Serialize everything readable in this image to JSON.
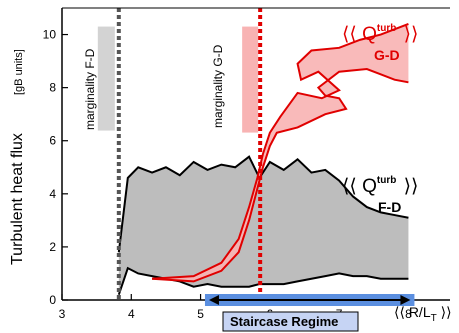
{
  "chart_data": {
    "type": "area",
    "xlabel": "⟨⟨ R/L",
    "xlabel_sub": "T",
    "xlabel_end": " ⟩⟩",
    "ylabel": "Turbulent  heat  flux",
    "yunit": "[gB units]",
    "xlim": [
      3,
      8.6
    ],
    "ylim": [
      0,
      11
    ],
    "xticks": [
      3,
      4,
      5,
      6,
      7,
      8
    ],
    "yticks": [
      0,
      2,
      4,
      6,
      8,
      10
    ],
    "marginality_fd": {
      "x": 3.82,
      "label": "marginality F-D",
      "color": "#555555"
    },
    "marginality_gd": {
      "x": 5.86,
      "label": "marginality G-D",
      "color": "#e00000"
    },
    "series": [
      {
        "name": "⟨⟨ Q turb F-D ⟩⟩",
        "label_main": "⟨⟨ Q",
        "label_sup": "turb",
        "label_sub": "F-D",
        "label_end": " ⟩⟩",
        "color": "#000000",
        "fill": "#bdbdbd",
        "x": [
          3.82,
          3.95,
          4.1,
          4.3,
          4.5,
          4.7,
          4.9,
          5.1,
          5.3,
          5.5,
          5.7,
          5.85,
          6.0,
          6.2,
          6.4,
          6.6,
          6.8,
          7.0,
          7.2,
          7.4,
          7.6,
          7.8,
          8.0
        ],
        "upper": [
          1.8,
          4.6,
          5.0,
          4.8,
          5.0,
          4.7,
          5.2,
          4.9,
          5.1,
          5.0,
          5.4,
          4.6,
          5.2,
          4.9,
          5.3,
          4.8,
          4.9,
          4.5,
          3.9,
          3.5,
          3.3,
          3.2,
          3.1
        ],
        "lower": [
          0.2,
          1.2,
          1.0,
          0.9,
          0.8,
          0.7,
          0.5,
          0.6,
          0.5,
          0.5,
          0.5,
          0.6,
          0.6,
          0.6,
          0.7,
          0.8,
          0.9,
          1.0,
          0.9,
          0.9,
          0.8,
          0.8,
          0.8
        ]
      },
      {
        "name": "⟨⟨ Q turb G-D ⟩⟩",
        "label_main": "⟨⟨ Q",
        "label_sup": "turb",
        "label_sub": "G-D",
        "label_end": " ⟩⟩",
        "color": "#e00000",
        "fill": "#f8b3b3",
        "upper": [
          [
            4.3,
            0.8
          ],
          [
            4.9,
            0.9
          ],
          [
            5.3,
            1.4
          ],
          [
            5.55,
            2.3
          ],
          [
            5.7,
            3.5
          ],
          [
            5.82,
            4.6
          ],
          [
            5.9,
            5.5
          ],
          [
            6.0,
            6.3
          ],
          [
            6.15,
            6.9
          ],
          [
            6.4,
            7.8
          ],
          [
            6.75,
            7.6
          ],
          [
            7.0,
            7.9
          ],
          [
            6.7,
            8.6
          ],
          [
            6.45,
            8.3
          ],
          [
            6.4,
            8.9
          ],
          [
            6.6,
            9.4
          ],
          [
            7.0,
            9.5
          ],
          [
            7.3,
            9.8
          ],
          [
            7.6,
            10.0
          ],
          [
            8.0,
            10.4
          ]
        ],
        "lower": [
          [
            4.3,
            0.8
          ],
          [
            4.9,
            0.7
          ],
          [
            5.3,
            1.1
          ],
          [
            5.55,
            1.8
          ],
          [
            5.7,
            3.0
          ],
          [
            5.82,
            4.2
          ],
          [
            5.9,
            5.0
          ],
          [
            6.0,
            5.8
          ],
          [
            6.1,
            6.3
          ],
          [
            6.4,
            6.5
          ],
          [
            6.8,
            7.0
          ],
          [
            7.1,
            7.2
          ],
          [
            7.0,
            7.6
          ],
          [
            6.8,
            7.7
          ],
          [
            6.7,
            8.0
          ],
          [
            7.0,
            8.6
          ],
          [
            7.4,
            8.7
          ],
          [
            7.8,
            8.3
          ],
          [
            8.0,
            8.2
          ]
        ]
      }
    ],
    "annotation": {
      "label": "Staircase Regime",
      "x_range": [
        5.15,
        8.0
      ],
      "color": "#5b8fe0",
      "label_bg": "#c6d4f4"
    },
    "grid": false
  }
}
